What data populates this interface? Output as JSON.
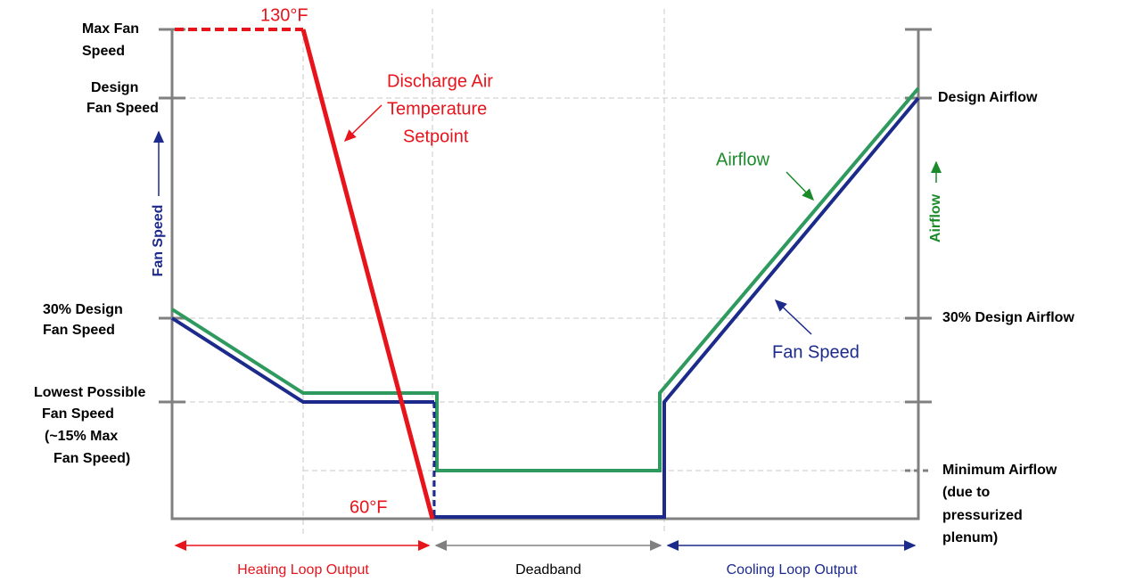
{
  "left_labels": [
    {
      "lines": [
        "Max Fan",
        "Speed"
      ]
    },
    {
      "lines": [
        "Design",
        "Fan Speed"
      ]
    },
    {
      "lines": [
        "30% Design",
        "Fan Speed"
      ]
    },
    {
      "lines": [
        "Lowest Possible",
        "Fan Speed",
        "(~15% Max",
        "Fan Speed)"
      ]
    }
  ],
  "right_labels": [
    {
      "lines": [
        "Design Airflow"
      ]
    },
    {
      "lines": [
        "30% Design Airflow"
      ]
    },
    {
      "lines": [
        "Minimum Airflow",
        "(due to",
        "pressurized",
        "plenum)"
      ]
    }
  ],
  "left_axis_title": "Fan Speed",
  "right_axis_title": "Airflow",
  "annotations": {
    "high_temp": "130°F",
    "low_temp": "60°F",
    "setpoint": [
      "Discharge Air",
      "Temperature",
      "Setpoint"
    ],
    "airflow": "Airflow",
    "fan_speed": "Fan Speed"
  },
  "bottom_segments": [
    "Heating Loop Output",
    "Deadband",
    "Cooling Loop Output"
  ]
}
